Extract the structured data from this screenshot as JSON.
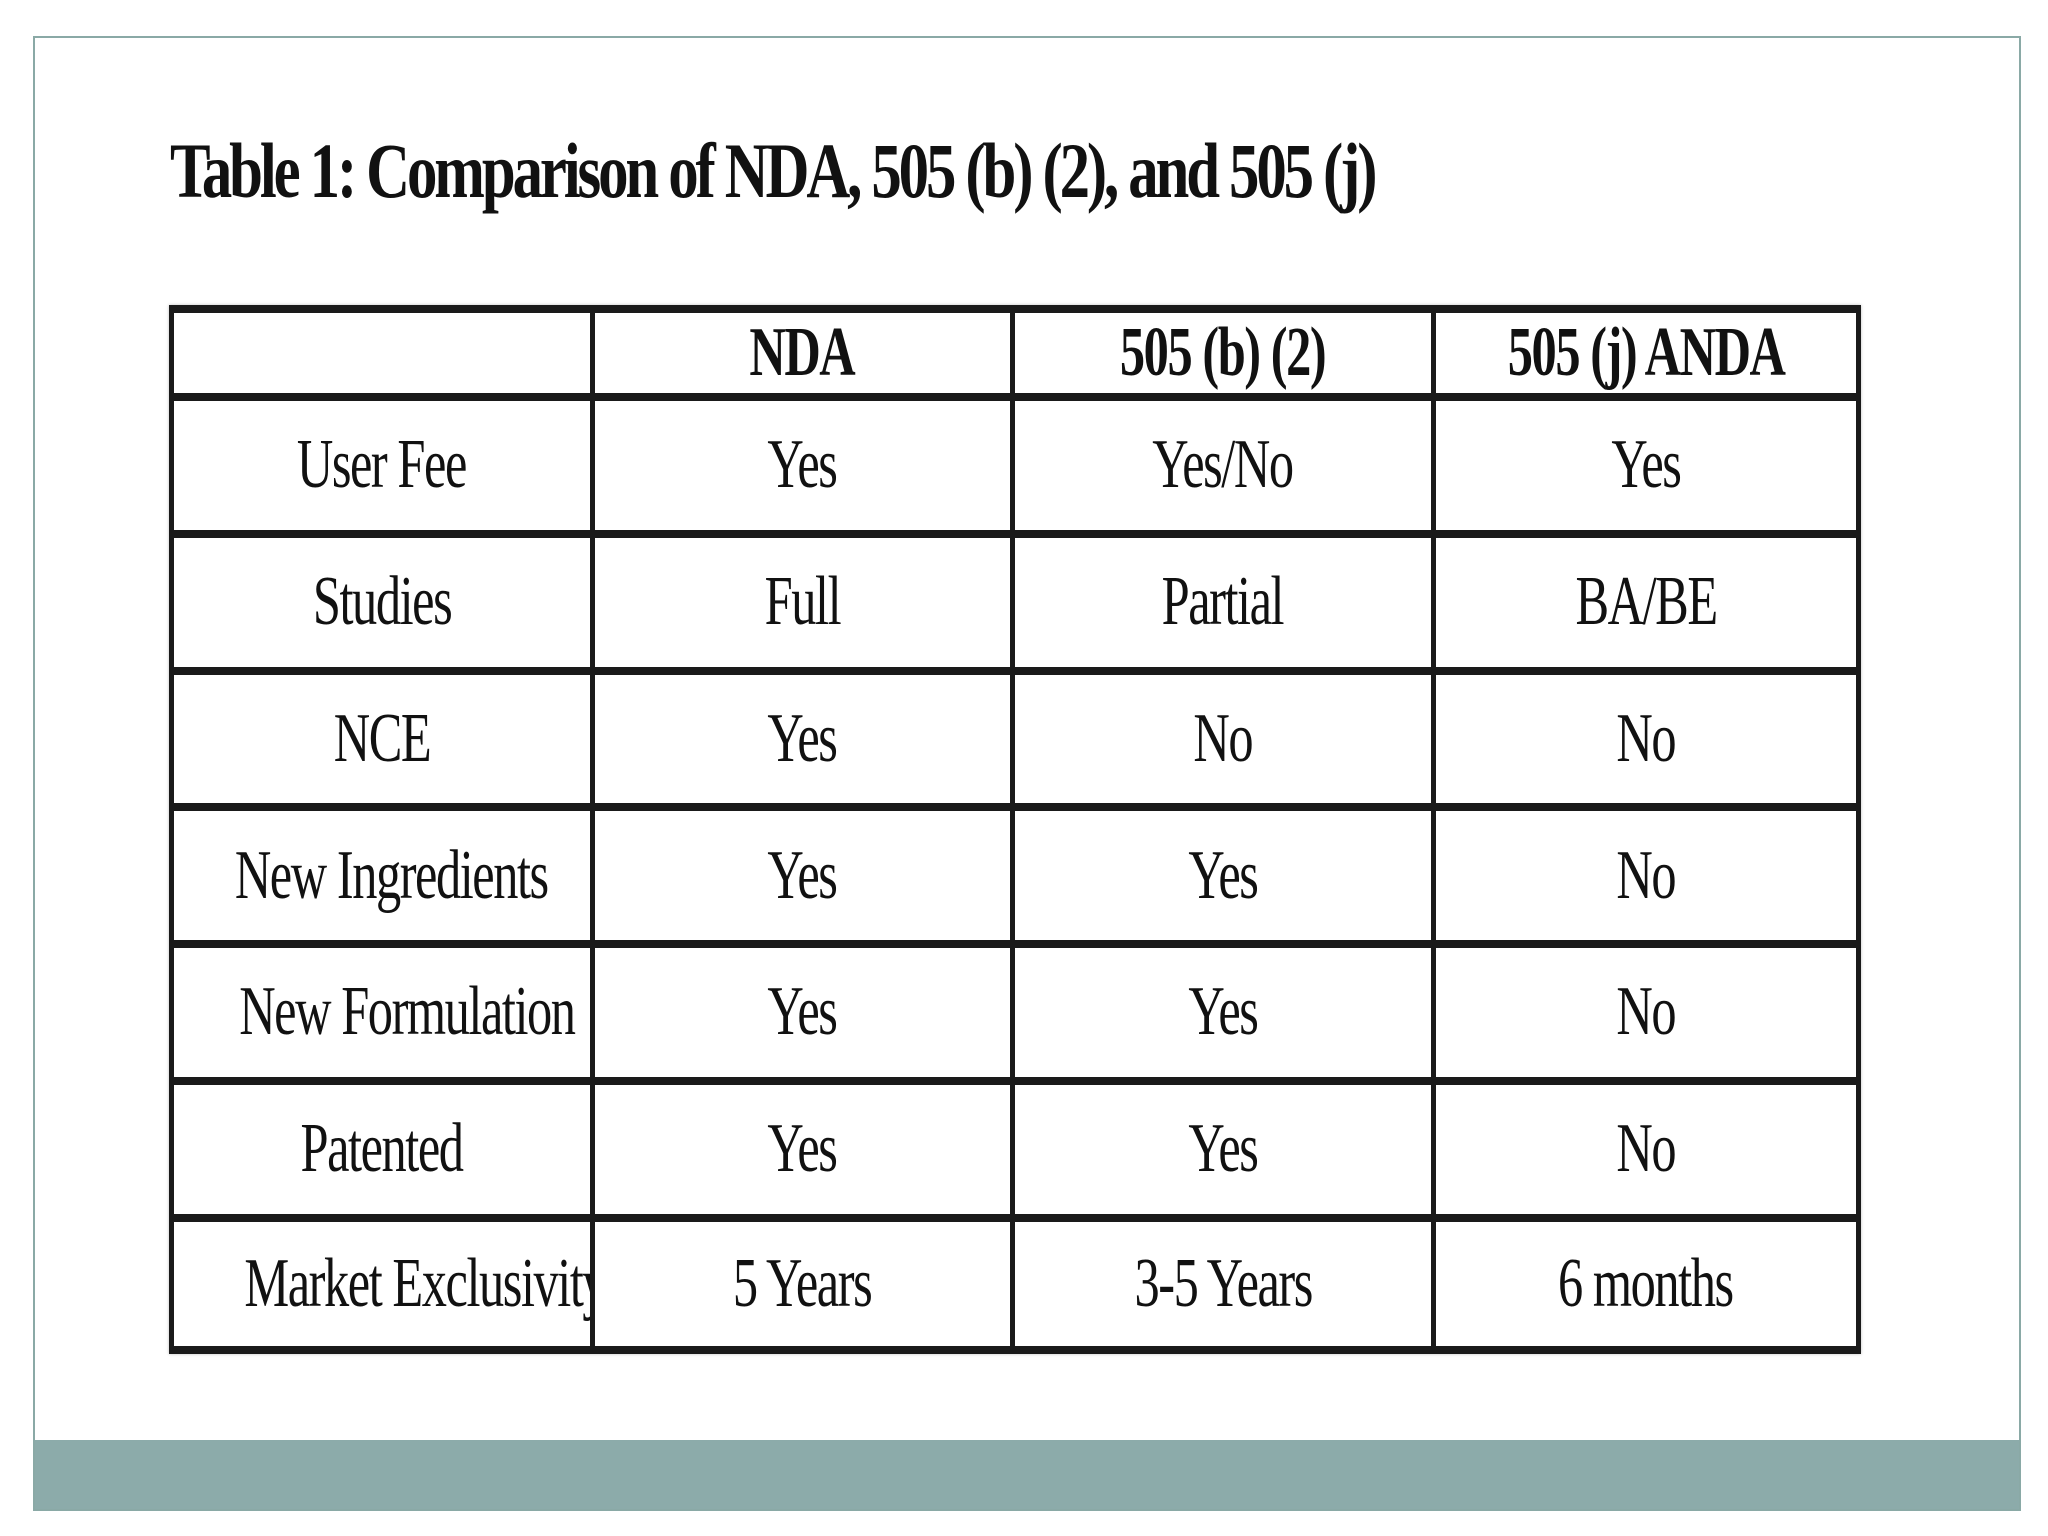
{
  "slide": {
    "title": "Table 1: Comparison of NDA, 505 (b) (2), and 505 (j)",
    "colors": {
      "footer_band": "#8cabaa",
      "frame_border": "#8aa9a6",
      "table_rule": "#1a1a1a"
    }
  },
  "table": {
    "headers": [
      "",
      "NDA",
      "505 (b) (2)",
      "505 (j) ANDA"
    ],
    "rows": [
      [
        "User Fee",
        "Yes",
        "Yes/No",
        "Yes"
      ],
      [
        "Studies",
        "Full",
        "Partial",
        "BA/BE"
      ],
      [
        "NCE",
        "Yes",
        "No",
        "No"
      ],
      [
        "New Ingredients",
        "Yes",
        "Yes",
        "No"
      ],
      [
        "New Formulation",
        "Yes",
        "Yes",
        "No"
      ],
      [
        "Patented",
        "Yes",
        "Yes",
        "No"
      ],
      [
        "Market Exclusivity",
        "5 Years",
        "3-5 Years",
        "6 months"
      ]
    ]
  }
}
